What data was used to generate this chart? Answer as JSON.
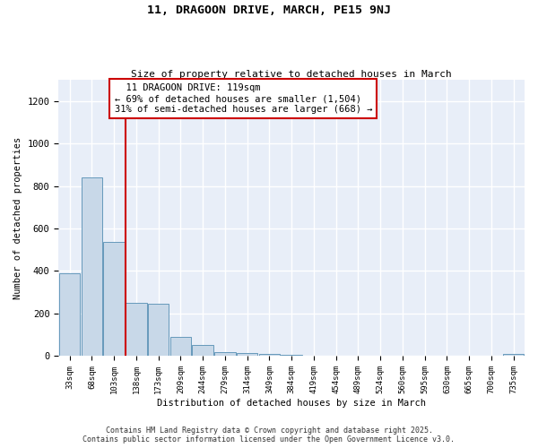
{
  "title_line1": "11, DRAGOON DRIVE, MARCH, PE15 9NJ",
  "title_line2": "Size of property relative to detached houses in March",
  "xlabel": "Distribution of detached houses by size in March",
  "ylabel": "Number of detached properties",
  "categories": [
    "33sqm",
    "68sqm",
    "103sqm",
    "138sqm",
    "173sqm",
    "209sqm",
    "244sqm",
    "279sqm",
    "314sqm",
    "349sqm",
    "384sqm",
    "419sqm",
    "454sqm",
    "489sqm",
    "524sqm",
    "560sqm",
    "595sqm",
    "630sqm",
    "665sqm",
    "700sqm",
    "735sqm"
  ],
  "values": [
    390,
    840,
    535,
    250,
    248,
    90,
    52,
    20,
    15,
    10,
    5,
    0,
    0,
    0,
    0,
    0,
    0,
    0,
    0,
    0,
    10
  ],
  "bar_color": "#c8d8e8",
  "bar_edge_color": "#6699bb",
  "background_color": "#e8eef8",
  "grid_color": "#ffffff",
  "red_line_x": 2.5,
  "red_line_color": "#cc0000",
  "annotation_text": "  11 DRAGOON DRIVE: 119sqm\n← 69% of detached houses are smaller (1,504)\n31% of semi-detached houses are larger (668) →",
  "ylim": [
    0,
    1300
  ],
  "yticks": [
    0,
    200,
    400,
    600,
    800,
    1000,
    1200
  ],
  "footer_line1": "Contains HM Land Registry data © Crown copyright and database right 2025.",
  "footer_line2": "Contains public sector information licensed under the Open Government Licence v3.0."
}
